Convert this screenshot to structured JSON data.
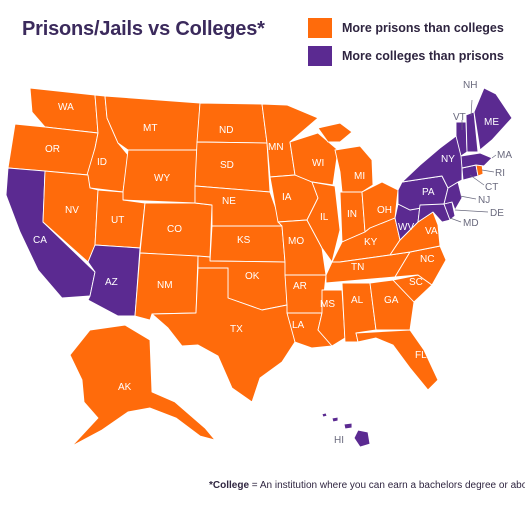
{
  "title": "Prisons/Jails vs Colleges*",
  "legend": [
    {
      "label": "More prisons than colleges",
      "color": "#ff6b0b"
    },
    {
      "label": "More colleges than prisons",
      "color": "#5b2a91"
    }
  ],
  "footnote": {
    "term": "*College",
    "definition": " = An institution where you can earn a bachelors degree or above"
  },
  "states": {
    "WA": "WA",
    "OR": "OR",
    "CA": "CA",
    "ID": "ID",
    "NV": "NV",
    "MT": "MT",
    "WY": "WY",
    "UT": "UT",
    "AZ": "AZ",
    "CO": "CO",
    "NM": "NM",
    "ND": "ND",
    "SD": "SD",
    "NE": "NE",
    "KS": "KS",
    "OK": "OK",
    "TX": "TX",
    "MN": "MN",
    "IA": "IA",
    "MO": "MO",
    "AR": "AR",
    "LA": "LA",
    "WI": "WI",
    "IL": "IL",
    "MS": "MS",
    "MI": "MI",
    "IN": "IN",
    "KY": "KY",
    "TN": "TN",
    "AL": "AL",
    "OH": "OH",
    "GA": "GA",
    "FL": "FL",
    "SC": "SC",
    "NC": "NC",
    "VA": "VA",
    "WV": "WV",
    "PA": "PA",
    "NY": "NY",
    "VT": "VT",
    "NH": "NH",
    "ME": "ME",
    "MA": "MA",
    "RI": "RI",
    "CT": "CT",
    "NJ": "NJ",
    "DE": "DE",
    "MD": "MD",
    "AK": "AK",
    "HI": "HI"
  },
  "state_categories": {
    "more_colleges_than_prisons": [
      "CA",
      "AZ",
      "WV",
      "PA",
      "NY",
      "VT",
      "NH",
      "ME",
      "MA",
      "CT",
      "NJ",
      "DE",
      "MD",
      "HI"
    ],
    "more_prisons_than_colleges": [
      "WA",
      "OR",
      "ID",
      "NV",
      "MT",
      "WY",
      "UT",
      "CO",
      "NM",
      "ND",
      "SD",
      "NE",
      "KS",
      "OK",
      "TX",
      "MN",
      "IA",
      "MO",
      "AR",
      "LA",
      "WI",
      "IL",
      "MS",
      "MI",
      "IN",
      "KY",
      "TN",
      "AL",
      "OH",
      "GA",
      "FL",
      "SC",
      "NC",
      "VA",
      "RI",
      "AK"
    ]
  }
}
